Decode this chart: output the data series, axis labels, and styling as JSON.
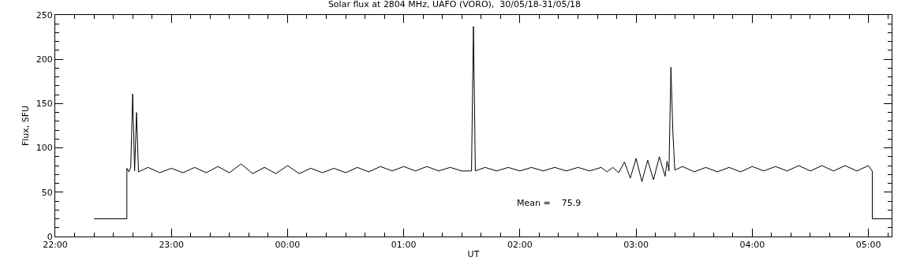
{
  "chart_data": {
    "type": "line",
    "title": "Solar flux at 2804 MHz, UAFO (VORO),  30/05/18-31/05/18",
    "xlabel": "UT",
    "ylabel": "Flux, SFU",
    "annotations": [
      "Mean =    75.9"
    ],
    "x": [
      "--05-30T22:20",
      "--05-30T22:37",
      "--05-30T22:37",
      "--05-30T22:38",
      "--05-30T22:39",
      "--05-30T22:40",
      "--05-30T22:41",
      "--05-30T22:42",
      "--05-30T22:43",
      "--05-30T22:48",
      "--05-30T22:54",
      "--05-30T23:00",
      "--05-30T23:06",
      "--05-30T23:12",
      "--05-30T23:18",
      "--05-30T23:24",
      "--05-30T23:30",
      "--05-30T23:36",
      "--05-30T23:42",
      "--05-30T23:48",
      "--05-30T23:54",
      "--05-31T00:00",
      "--05-31T00:06",
      "--05-31T00:12",
      "--05-31T00:18",
      "--05-31T00:24",
      "--05-31T00:30",
      "--05-31T00:36",
      "--05-31T00:42",
      "--05-31T00:48",
      "--05-31T00:54",
      "--05-31T01:00",
      "--05-31T01:06",
      "--05-31T01:12",
      "--05-31T01:18",
      "--05-31T01:24",
      "--05-31T01:30",
      "--05-31T01:35",
      "--05-31T01:36",
      "--05-31T01:37",
      "--05-31T01:42",
      "--05-31T01:48",
      "--05-31T01:54",
      "--05-31T02:00",
      "--05-31T02:06",
      "--05-31T02:12",
      "--05-31T02:18",
      "--05-31T02:24",
      "--05-31T02:30",
      "--05-31T02:36",
      "--05-31T02:42",
      "--05-31T02:45",
      "--05-31T02:48",
      "--05-31T02:51",
      "--05-31T02:54",
      "--05-31T02:57",
      "--05-31T03:00",
      "--05-31T03:03",
      "--05-31T03:06",
      "--05-31T03:09",
      "--05-31T03:12",
      "--05-31T03:15",
      "--05-31T03:16",
      "--05-31T03:17",
      "--05-31T03:18",
      "--05-31T03:19",
      "--05-31T03:20",
      "--05-31T03:24",
      "--05-31T03:30",
      "--05-31T03:36",
      "--05-31T03:42",
      "--05-31T03:48",
      "--05-31T03:54",
      "--05-31T04:00",
      "--05-31T04:06",
      "--05-31T04:12",
      "--05-31T04:18",
      "--05-31T04:24",
      "--05-31T04:30",
      "--05-31T04:36",
      "--05-31T04:42",
      "--05-31T04:48",
      "--05-31T04:54",
      "--05-31T05:00",
      "--05-31T05:02",
      "--05-31T05:02",
      "--05-31T05:12"
    ],
    "series": [
      {
        "color": "#000000",
        "values": [
          20,
          20,
          77,
          73,
          78,
          161,
          74,
          140,
          73,
          78,
          72,
          77,
          72,
          78,
          72,
          79,
          72,
          82,
          71,
          78,
          71,
          80,
          71,
          77,
          72,
          77,
          72,
          78,
          73,
          79,
          74,
          79,
          74,
          79,
          74,
          78,
          74,
          74,
          237,
          74,
          78,
          74,
          78,
          74,
          78,
          74,
          78,
          74,
          78,
          74,
          78,
          73,
          78,
          72,
          84,
          66,
          88,
          62,
          86,
          64,
          90,
          68,
          85,
          74,
          191,
          118,
          75,
          79,
          73,
          78,
          73,
          78,
          73,
          79,
          74,
          79,
          74,
          80,
          74,
          80,
          74,
          80,
          74,
          80,
          74,
          20,
          20
        ]
      }
    ],
    "xlim": [
      "--05-30T22:00",
      "--05-31T05:12"
    ],
    "xticks": [
      {
        "value": "--05-30T22:00",
        "label": "22:00"
      },
      {
        "value": "--05-30T23:00",
        "label": "23:00"
      },
      {
        "value": "--05-31T00:00",
        "label": "00:00"
      },
      {
        "value": "--05-31T01:00",
        "label": "01:00"
      },
      {
        "value": "--05-31T02:00",
        "label": "02:00"
      },
      {
        "value": "--05-31T03:00",
        "label": "03:00"
      },
      {
        "value": "--05-31T04:00",
        "label": "04:00"
      },
      {
        "value": "--05-31T05:00",
        "label": "05:00"
      }
    ],
    "ylim": [
      0,
      250
    ],
    "yticks": [
      0,
      50,
      100,
      150,
      200,
      250
    ],
    "marker": "none",
    "line_style": "solid"
  }
}
